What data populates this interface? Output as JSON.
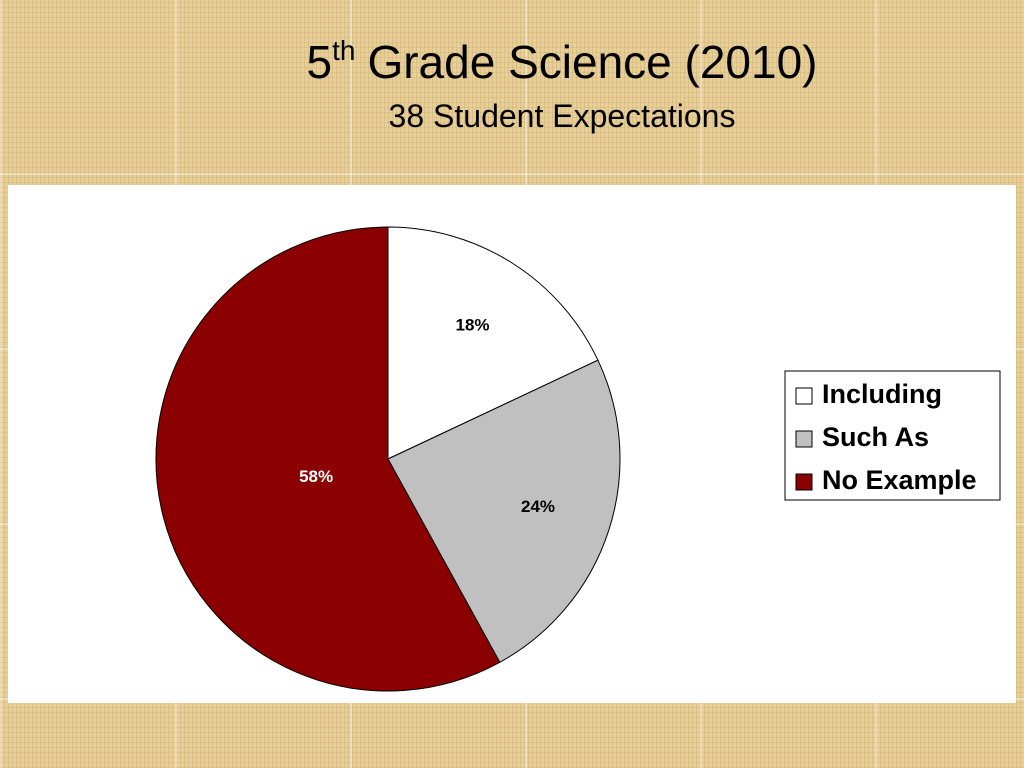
{
  "chart_data": {
    "type": "pie",
    "title": [
      "5",
      "th",
      "Grade Science (2010)"
    ],
    "subtitle": "38 Student Expectations",
    "categories": [
      "Including",
      "Such As",
      "No Example"
    ],
    "values": [
      18,
      24,
      58
    ],
    "value_labels": [
      "18%",
      "24%",
      "58%"
    ],
    "colors": [
      "#ffffff",
      "#c0c0c0",
      "#8b0000"
    ],
    "label_colors": [
      "#000000",
      "#000000",
      "#ffffff"
    ],
    "legend": "right"
  }
}
